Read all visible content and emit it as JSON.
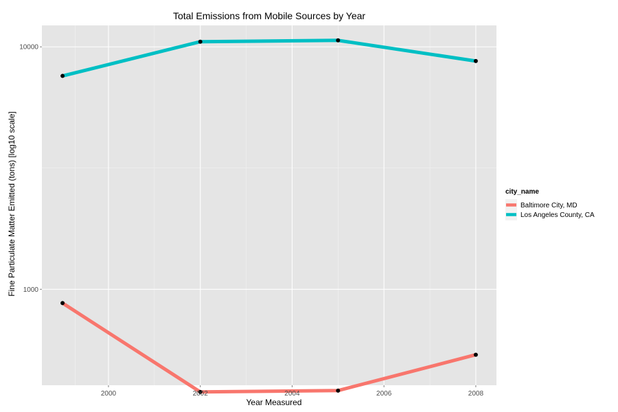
{
  "chart_data": {
    "type": "line",
    "title": "Total Emissions from Mobile Sources by Year",
    "xlabel": "Year Measured",
    "ylabel": "Fine Particulate Matter Emitted (tons) [log10 scale]",
    "y_scale": "log10",
    "x_ticks": [
      2000,
      2002,
      2004,
      2006,
      2008
    ],
    "y_ticks": [
      1000,
      10000
    ],
    "xlim": [
      1998.55,
      2008.45
    ],
    "ylim": [
      402,
      12260
    ],
    "grid": true,
    "background": "#e5e5e5",
    "legend": {
      "title": "city_name",
      "placement": "right"
    },
    "series": [
      {
        "name": "Baltimore City, MD",
        "color": "#f8766d",
        "x": [
          1999,
          2002,
          2005,
          2008
        ],
        "y": [
          877,
          377,
          382,
          537
        ]
      },
      {
        "name": "Los Angeles County, CA",
        "color": "#00bfc4",
        "x": [
          1999,
          2002,
          2005,
          2008
        ],
        "y": [
          7588,
          10501,
          10638,
          8738
        ]
      }
    ]
  }
}
